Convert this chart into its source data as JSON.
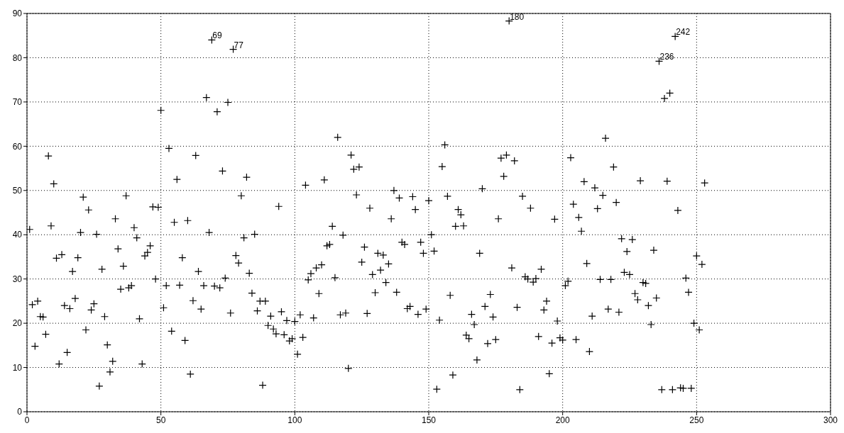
{
  "chart_data": {
    "type": "scatter",
    "marker": "cross",
    "color": "#000000",
    "grid": true,
    "xlim": [
      0,
      300
    ],
    "xticks": [
      0,
      50,
      100,
      150,
      200,
      250,
      300
    ],
    "ylim": [
      0,
      90
    ],
    "yticks": [
      0,
      10,
      20,
      30,
      40,
      50,
      60,
      70,
      80,
      90
    ],
    "x": [
      1,
      2,
      3,
      4,
      5,
      6,
      7,
      8,
      9,
      10,
      11,
      12,
      13,
      14,
      15,
      16,
      17,
      18,
      19,
      20,
      21,
      22,
      23,
      24,
      25,
      26,
      27,
      28,
      29,
      30,
      31,
      32,
      33,
      34,
      35,
      36,
      37,
      38,
      39,
      40,
      41,
      42,
      43,
      44,
      45,
      46,
      47,
      48,
      49,
      50,
      51,
      52,
      53,
      54,
      55,
      56,
      57,
      58,
      59,
      60,
      61,
      62,
      63,
      64,
      65,
      66,
      67,
      68,
      69,
      70,
      71,
      72,
      73,
      74,
      75,
      76,
      77,
      78,
      79,
      80,
      81,
      82,
      83,
      84,
      85,
      86,
      87,
      88,
      89,
      90,
      91,
      92,
      93,
      94,
      95,
      96,
      97,
      98,
      99,
      100,
      101,
      102,
      103,
      104,
      105,
      106,
      107,
      108,
      109,
      110,
      111,
      112,
      113,
      114,
      115,
      116,
      117,
      118,
      119,
      120,
      121,
      122,
      123,
      124,
      125,
      126,
      127,
      128,
      129,
      130,
      131,
      132,
      133,
      134,
      135,
      136,
      137,
      138,
      139,
      140,
      141,
      142,
      143,
      144,
      145,
      146,
      147,
      148,
      149,
      150,
      151,
      152,
      153,
      154,
      155,
      156,
      157,
      158,
      159,
      160,
      161,
      162,
      163,
      164,
      165,
      166,
      167,
      168,
      169,
      170,
      171,
      172,
      173,
      174,
      175,
      176,
      177,
      178,
      179,
      180,
      181,
      182,
      183,
      184,
      185,
      186,
      187,
      188,
      189,
      190,
      191,
      192,
      193,
      194,
      195,
      196,
      197,
      198,
      199,
      200,
      201,
      202,
      203,
      204,
      205,
      206,
      207,
      208,
      209,
      210,
      211,
      212,
      213,
      214,
      215,
      216,
      217,
      218,
      219,
      220,
      221,
      222,
      223,
      224,
      225,
      226,
      227,
      228,
      229,
      230,
      231,
      232,
      233,
      234,
      235,
      236,
      237,
      238,
      239,
      240,
      241,
      242,
      243,
      244,
      245,
      246,
      247,
      248,
      249,
      250,
      251,
      252,
      253
    ],
    "values": [
      41.2,
      24.2,
      14.8,
      25,
      21.5,
      21.4,
      17.5,
      57.8,
      42,
      51.5,
      34.7,
      10.8,
      35.5,
      24,
      13.4,
      23.3,
      31.7,
      25.6,
      34.8,
      40.5,
      48.5,
      18.5,
      45.6,
      23,
      24.4,
      40.1,
      5.8,
      32.2,
      21.5,
      15.1,
      9,
      11.4,
      43.6,
      36.8,
      27.7,
      32.9,
      48.8,
      28,
      28.5,
      41.6,
      39.3,
      21,
      10.8,
      35.2,
      36,
      37.5,
      46.3,
      30,
      46.2,
      68.1,
      23.5,
      28.5,
      59.5,
      18.2,
      42.8,
      52.5,
      28.6,
      34.8,
      16.1,
      43.2,
      8.5,
      25.1,
      57.9,
      31.7,
      23.2,
      28.5,
      71,
      40.5,
      84,
      28.4,
      67.8,
      28,
      54.4,
      30.2,
      69.9,
      22.3,
      81.9,
      35.3,
      33.6,
      48.8,
      39.3,
      53,
      31.3,
      26.8,
      40.1,
      22.8,
      25,
      6,
      25,
      19.5,
      21.6,
      18.7,
      17.6,
      46.4,
      22.6,
      17.4,
      20.6,
      16,
      16.5,
      20.4,
      13,
      21.9,
      16.8,
      51.2,
      29.8,
      31.2,
      21.2,
      32.5,
      26.7,
      33.2,
      52.4,
      37.5,
      37.8,
      41.9,
      30.3,
      62,
      21.9,
      39.9,
      22.3,
      9.8,
      58,
      54.8,
      49,
      55.3,
      33.8,
      37.2,
      22.2,
      46,
      31,
      26.9,
      35.8,
      32,
      35.4,
      29.2,
      33.4,
      43.6,
      50,
      27,
      48.3,
      38.3,
      37.8,
      23.3,
      23.8,
      48.6,
      45.7,
      22,
      38.3,
      35.8,
      23.2,
      47.7,
      40,
      36.3,
      5.1,
      20.7,
      55.4,
      60.3,
      48.7,
      26.3,
      8.3,
      41.9,
      45.7,
      44.5,
      42,
      17.3,
      16.5,
      22,
      19.7,
      11.7,
      35.8,
      50.4,
      23.8,
      15.4,
      26.5,
      21.4,
      16.3,
      43.6,
      57.3,
      53.2,
      58,
      88.3,
      32.5,
      56.7,
      23.6,
      5,
      48.7,
      30.5,
      30,
      46,
      29.3,
      30.1,
      17,
      32.2,
      23,
      25,
      8.6,
      15.5,
      43.5,
      20.5,
      16.7,
      16.2,
      28.5,
      29.5,
      57.4,
      46.9,
      16.3,
      43.9,
      40.8,
      52,
      33.5,
      13.6,
      21.6,
      50.6,
      45.9,
      29.9,
      48.9,
      61.8,
      23.2,
      29.9,
      55.3,
      47.3,
      22.5,
      39.1,
      31.5,
      36.2,
      31,
      38.9,
      26.7,
      25.3,
      52.2,
      29.2,
      29,
      24,
      19.7,
      36.5,
      25.7,
      79.2,
      5,
      70.8,
      52.1,
      72,
      5,
      84.8,
      45.5,
      5.4,
      5.3,
      30.2,
      27,
      5.3,
      20,
      35.2,
      18.5,
      33.3,
      51.7
    ],
    "annotations": [
      {
        "text": "69",
        "x": 69,
        "y": 84
      },
      {
        "text": "77",
        "x": 77,
        "y": 81.9
      },
      {
        "text": "180",
        "x": 180,
        "y": 88.3
      },
      {
        "text": "236",
        "x": 236,
        "y": 79.2
      },
      {
        "text": "242",
        "x": 242,
        "y": 84.8
      }
    ]
  }
}
